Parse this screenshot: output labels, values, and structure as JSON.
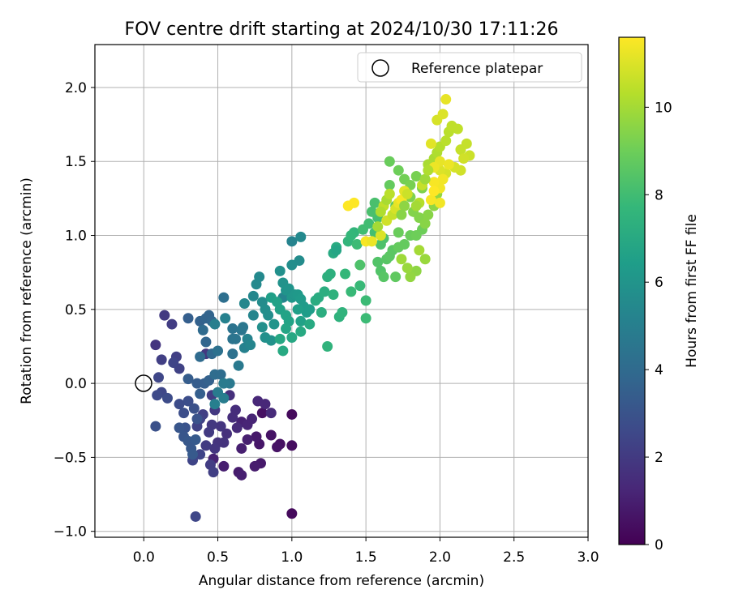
{
  "chart_data": {
    "type": "scatter",
    "title": "FOV centre drift starting at 2024/10/30 17:11:26",
    "xlabel": "Angular distance from reference (arcmin)",
    "ylabel": "Rotation from reference (arcmin)",
    "xlim": [
      -0.33,
      3.0
    ],
    "ylim": [
      -1.04,
      2.29
    ],
    "xticks": [
      0.0,
      0.5,
      1.0,
      1.5,
      2.0,
      2.5,
      3.0
    ],
    "xtick_labels": [
      "0.0",
      "0.5",
      "1.0",
      "1.5",
      "2.0",
      "2.5",
      "3.0"
    ],
    "yticks": [
      -1.0,
      -0.5,
      0.0,
      0.5,
      1.0,
      1.5,
      2.0
    ],
    "ytick_labels": [
      "−1.0",
      "−0.5",
      "0.0",
      "0.5",
      "1.0",
      "1.5",
      "2.0"
    ],
    "grid": true,
    "legend": {
      "position": "top-right",
      "entries": [
        {
          "label": "Reference platepar",
          "marker": "open-circle"
        }
      ]
    },
    "reference_point": {
      "x": 0.0,
      "y": 0.0
    },
    "colorbar": {
      "label": "Hours from first FF file",
      "colormap": "viridis",
      "range": [
        0,
        11.6
      ],
      "ticks": [
        0,
        2,
        4,
        6,
        8,
        10
      ],
      "tick_labels": [
        "0",
        "2",
        "4",
        "6",
        "8",
        "10"
      ]
    },
    "colormap_stops": [
      "#440154",
      "#482878",
      "#3e4989",
      "#31688e",
      "#26828e",
      "#1f9e89",
      "#35b779",
      "#6ece58",
      "#b5de2b",
      "#fde725"
    ],
    "points": [
      [
        1.0,
        -0.88,
        0.3
      ],
      [
        1.0,
        -0.21,
        0.3
      ],
      [
        1.0,
        -0.42,
        0.4
      ],
      [
        0.92,
        -0.41,
        0.5
      ],
      [
        0.9,
        -0.43,
        0.6
      ],
      [
        0.8,
        -0.2,
        0.5
      ],
      [
        0.86,
        -0.35,
        0.6
      ],
      [
        0.78,
        -0.41,
        0.7
      ],
      [
        0.76,
        -0.36,
        0.8
      ],
      [
        0.79,
        -0.54,
        0.8
      ],
      [
        0.75,
        -0.56,
        0.9
      ],
      [
        0.64,
        -0.6,
        0.9
      ],
      [
        0.66,
        -0.62,
        1.0
      ],
      [
        0.54,
        -0.56,
        1.0
      ],
      [
        0.47,
        -0.51,
        1.1
      ],
      [
        0.7,
        -0.38,
        1.0
      ],
      [
        0.66,
        -0.44,
        1.0
      ],
      [
        0.66,
        -0.26,
        1.1
      ],
      [
        0.7,
        -0.28,
        1.2
      ],
      [
        0.73,
        -0.24,
        1.2
      ],
      [
        0.77,
        -0.12,
        1.3
      ],
      [
        0.82,
        -0.14,
        1.3
      ],
      [
        0.86,
        -0.2,
        1.4
      ],
      [
        0.63,
        -0.3,
        1.4
      ],
      [
        0.62,
        -0.18,
        1.5
      ],
      [
        0.6,
        -0.23,
        1.5
      ],
      [
        0.58,
        -0.08,
        1.6
      ],
      [
        0.56,
        -0.34,
        1.6
      ],
      [
        0.54,
        -0.4,
        1.7
      ],
      [
        0.5,
        -0.4,
        1.7
      ],
      [
        0.48,
        -0.44,
        1.8
      ],
      [
        0.52,
        -0.29,
        1.8
      ],
      [
        0.48,
        -0.18,
        1.9
      ],
      [
        0.46,
        -0.28,
        1.9
      ],
      [
        0.44,
        -0.33,
        2.0
      ],
      [
        0.42,
        -0.42,
        2.0
      ],
      [
        0.46,
        -0.08,
        2.1
      ],
      [
        0.45,
        -0.55,
        2.1
      ],
      [
        0.47,
        -0.6,
        2.2
      ],
      [
        0.42,
        0.2,
        1.9
      ],
      [
        0.4,
        -0.21,
        2.2
      ],
      [
        0.38,
        -0.24,
        2.3
      ],
      [
        0.36,
        -0.29,
        2.3
      ],
      [
        0.38,
        -0.48,
        2.4
      ],
      [
        0.33,
        -0.52,
        2.4
      ],
      [
        0.35,
        -0.9,
        2.5
      ],
      [
        0.14,
        0.46,
        2.0
      ],
      [
        0.19,
        0.4,
        2.1
      ],
      [
        0.08,
        0.26,
        1.8
      ],
      [
        0.12,
        0.16,
        2.2
      ],
      [
        0.22,
        0.18,
        2.2
      ],
      [
        0.24,
        0.1,
        2.3
      ],
      [
        0.2,
        0.14,
        2.4
      ],
      [
        0.1,
        0.04,
        2.5
      ],
      [
        0.12,
        -0.06,
        2.5
      ],
      [
        0.09,
        -0.08,
        2.6
      ],
      [
        0.16,
        -0.1,
        2.7
      ],
      [
        0.24,
        -0.14,
        2.7
      ],
      [
        0.27,
        -0.2,
        2.8
      ],
      [
        0.3,
        -0.12,
        2.8
      ],
      [
        0.34,
        -0.17,
        2.9
      ],
      [
        0.36,
        -0.24,
        3.0
      ],
      [
        0.28,
        -0.3,
        3.0
      ],
      [
        0.24,
        -0.3,
        3.1
      ],
      [
        0.27,
        -0.36,
        3.1
      ],
      [
        0.3,
        -0.39,
        3.2
      ],
      [
        0.32,
        -0.44,
        3.2
      ],
      [
        0.35,
        -0.38,
        3.3
      ],
      [
        0.08,
        -0.29,
        2.9
      ],
      [
        0.33,
        -0.48,
        3.3
      ],
      [
        0.3,
        0.03,
        3.4
      ],
      [
        0.36,
        0.0,
        3.4
      ],
      [
        0.38,
        -0.07,
        3.5
      ],
      [
        0.41,
        0.0,
        3.5
      ],
      [
        0.44,
        0.02,
        3.6
      ],
      [
        0.3,
        0.44,
        3.5
      ],
      [
        0.38,
        0.42,
        3.6
      ],
      [
        0.42,
        0.44,
        3.7
      ],
      [
        0.44,
        0.46,
        3.7
      ],
      [
        0.46,
        0.42,
        3.8
      ],
      [
        0.42,
        0.28,
        3.8
      ],
      [
        0.46,
        0.2,
        3.9
      ],
      [
        0.38,
        0.18,
        4.0
      ],
      [
        0.4,
        0.36,
        4.0
      ],
      [
        0.48,
        0.06,
        4.1
      ],
      [
        0.52,
        0.06,
        4.1
      ],
      [
        0.54,
        0.58,
        4.2
      ],
      [
        0.5,
        0.22,
        4.3
      ],
      [
        0.6,
        0.2,
        4.3
      ],
      [
        0.6,
        0.3,
        4.4
      ],
      [
        0.6,
        0.37,
        4.4
      ],
      [
        0.62,
        0.3,
        4.5
      ],
      [
        0.66,
        0.36,
        4.5
      ],
      [
        0.67,
        0.38,
        4.6
      ],
      [
        0.64,
        0.12,
        4.7
      ],
      [
        0.58,
        0.0,
        4.7
      ],
      [
        0.54,
        0.0,
        4.8
      ],
      [
        0.5,
        -0.06,
        4.8
      ],
      [
        0.54,
        -0.1,
        4.9
      ],
      [
        0.48,
        -0.14,
        5.0
      ],
      [
        0.48,
        0.4,
        5.0
      ],
      [
        0.55,
        0.44,
        5.1
      ],
      [
        0.68,
        0.24,
        5.1
      ],
      [
        0.7,
        0.3,
        5.2
      ],
      [
        0.72,
        0.26,
        5.3
      ],
      [
        0.74,
        0.46,
        5.3
      ],
      [
        0.68,
        0.54,
        5.4
      ],
      [
        0.74,
        0.59,
        5.4
      ],
      [
        0.76,
        0.67,
        5.5
      ],
      [
        0.78,
        0.72,
        5.5
      ],
      [
        0.8,
        0.55,
        5.6
      ],
      [
        0.82,
        0.5,
        5.7
      ],
      [
        0.84,
        0.46,
        5.7
      ],
      [
        0.8,
        0.38,
        5.8
      ],
      [
        0.82,
        0.31,
        5.8
      ],
      [
        0.86,
        0.29,
        5.9
      ],
      [
        0.88,
        0.4,
        6.0
      ],
      [
        0.94,
        0.58,
        5.3
      ],
      [
        1.0,
        0.96,
        5.2
      ],
      [
        1.06,
        0.99,
        5.5
      ],
      [
        1.05,
        0.83,
        5.6
      ],
      [
        1.0,
        0.8,
        5.7
      ],
      [
        0.92,
        0.76,
        5.8
      ],
      [
        0.94,
        0.68,
        5.9
      ],
      [
        0.96,
        0.63,
        6.0
      ],
      [
        0.98,
        0.64,
        6.0
      ],
      [
        1.0,
        0.58,
        6.1
      ],
      [
        1.02,
        0.6,
        6.1
      ],
      [
        1.04,
        0.6,
        6.2
      ],
      [
        1.06,
        0.57,
        6.3
      ],
      [
        1.08,
        0.52,
        6.3
      ],
      [
        1.1,
        0.48,
        6.4
      ],
      [
        1.12,
        0.5,
        6.4
      ],
      [
        1.04,
        0.5,
        6.5
      ],
      [
        1.06,
        0.42,
        6.6
      ],
      [
        0.86,
        0.58,
        6.5
      ],
      [
        0.9,
        0.55,
        6.6
      ],
      [
        0.92,
        0.5,
        6.6
      ],
      [
        0.96,
        0.46,
        6.7
      ],
      [
        0.98,
        0.42,
        6.7
      ],
      [
        0.96,
        0.37,
        6.8
      ],
      [
        0.92,
        0.3,
        6.9
      ],
      [
        0.94,
        0.22,
        7.0
      ],
      [
        1.0,
        0.31,
        6.9
      ],
      [
        1.06,
        0.35,
        7.0
      ],
      [
        1.12,
        0.4,
        7.0
      ],
      [
        1.16,
        0.56,
        7.1
      ],
      [
        1.18,
        0.58,
        7.1
      ],
      [
        1.2,
        0.48,
        7.2
      ],
      [
        1.22,
        0.62,
        7.2
      ],
      [
        1.24,
        0.72,
        7.3
      ],
      [
        1.26,
        0.74,
        7.3
      ],
      [
        1.28,
        0.6,
        7.4
      ],
      [
        1.32,
        0.45,
        7.4
      ],
      [
        1.34,
        0.48,
        7.5
      ],
      [
        1.24,
        0.25,
        7.5
      ],
      [
        1.28,
        0.88,
        7.0
      ],
      [
        1.3,
        0.92,
        7.1
      ],
      [
        1.3,
        0.9,
        6.8
      ],
      [
        1.38,
        0.96,
        7.6
      ],
      [
        1.42,
        1.02,
        7.6
      ],
      [
        1.4,
        1.0,
        7.7
      ],
      [
        1.36,
        0.74,
        7.7
      ],
      [
        1.4,
        0.62,
        7.8
      ],
      [
        1.46,
        0.66,
        7.8
      ],
      [
        1.5,
        0.56,
        7.9
      ],
      [
        1.5,
        0.44,
        7.9
      ],
      [
        1.44,
        0.94,
        7.9
      ],
      [
        1.48,
        1.04,
        8.0
      ],
      [
        1.52,
        1.08,
        8.0
      ],
      [
        1.56,
        1.02,
        8.1
      ],
      [
        1.58,
        1.12,
        8.1
      ],
      [
        1.56,
        1.22,
        8.2
      ],
      [
        1.54,
        1.16,
        8.2
      ],
      [
        1.6,
        0.94,
        8.3
      ],
      [
        1.62,
        0.98,
        8.3
      ],
      [
        1.46,
        0.8,
        8.3
      ],
      [
        1.58,
        0.82,
        8.4
      ],
      [
        1.6,
        0.76,
        8.4
      ],
      [
        1.62,
        0.72,
        8.5
      ],
      [
        1.64,
        0.84,
        8.5
      ],
      [
        1.66,
        0.86,
        8.6
      ],
      [
        1.68,
        0.9,
        8.6
      ],
      [
        1.7,
        0.72,
        8.7
      ],
      [
        1.72,
        0.92,
        8.8
      ],
      [
        1.76,
        0.94,
        8.8
      ],
      [
        1.8,
        1.0,
        8.9
      ],
      [
        1.84,
        1.0,
        9.0
      ],
      [
        1.88,
        1.04,
        9.0
      ],
      [
        1.72,
        1.02,
        8.9
      ],
      [
        1.7,
        1.2,
        8.7
      ],
      [
        1.66,
        1.34,
        8.8
      ],
      [
        1.66,
        1.5,
        8.9
      ],
      [
        1.72,
        1.44,
        9.0
      ],
      [
        1.76,
        1.38,
        9.1
      ],
      [
        1.8,
        1.34,
        9.2
      ],
      [
        1.84,
        1.4,
        9.2
      ],
      [
        1.88,
        1.32,
        9.3
      ],
      [
        1.8,
        1.26,
        9.3
      ],
      [
        1.82,
        1.16,
        9.4
      ],
      [
        1.86,
        1.12,
        9.4
      ],
      [
        1.9,
        1.08,
        9.5
      ],
      [
        1.92,
        1.14,
        9.5
      ],
      [
        1.96,
        1.2,
        9.6
      ],
      [
        1.98,
        1.28,
        9.7
      ],
      [
        1.84,
        0.76,
        9.6
      ],
      [
        1.8,
        0.72,
        9.7
      ],
      [
        1.78,
        0.78,
        9.8
      ],
      [
        1.9,
        0.84,
        9.8
      ],
      [
        1.74,
        0.84,
        9.9
      ],
      [
        1.86,
        0.9,
        10.0
      ],
      [
        1.92,
        1.48,
        10.1
      ],
      [
        1.96,
        1.52,
        10.1
      ],
      [
        1.98,
        1.56,
        10.2
      ],
      [
        2.0,
        1.6,
        10.3
      ],
      [
        2.04,
        1.64,
        10.4
      ],
      [
        2.06,
        1.7,
        10.4
      ],
      [
        2.08,
        1.74,
        10.5
      ],
      [
        2.12,
        1.72,
        10.5
      ],
      [
        2.14,
        1.58,
        10.6
      ],
      [
        2.18,
        1.62,
        10.6
      ],
      [
        2.2,
        1.54,
        10.7
      ],
      [
        2.16,
        1.52,
        10.8
      ],
      [
        2.14,
        1.44,
        10.8
      ],
      [
        2.1,
        1.46,
        10.9
      ],
      [
        2.04,
        1.42,
        10.9
      ],
      [
        2.0,
        1.44,
        11.0
      ],
      [
        1.98,
        1.78,
        10.9
      ],
      [
        2.02,
        1.82,
        11.0
      ],
      [
        1.94,
        1.62,
        11.1
      ],
      [
        2.04,
        1.92,
        11.2
      ],
      [
        2.0,
        1.5,
        11.2
      ],
      [
        1.96,
        1.46,
        11.3
      ],
      [
        2.06,
        1.48,
        11.3
      ],
      [
        2.02,
        1.38,
        11.4
      ],
      [
        2.0,
        1.32,
        11.4
      ],
      [
        1.96,
        1.36,
        11.5
      ],
      [
        1.94,
        1.24,
        11.5
      ],
      [
        1.96,
        1.3,
        11.6
      ],
      [
        2.0,
        1.22,
        11.4
      ],
      [
        1.38,
        1.2,
        11.6
      ],
      [
        1.42,
        1.22,
        11.6
      ],
      [
        1.5,
        0.96,
        11.5
      ],
      [
        1.54,
        0.96,
        11.3
      ],
      [
        1.6,
        1.0,
        11.0
      ],
      [
        1.64,
        1.1,
        10.8
      ],
      [
        1.68,
        1.14,
        10.6
      ],
      [
        1.7,
        1.18,
        10.9
      ],
      [
        1.72,
        1.22,
        11.2
      ],
      [
        1.74,
        1.24,
        11.5
      ],
      [
        1.76,
        1.3,
        11.1
      ],
      [
        1.78,
        1.28,
        10.7
      ],
      [
        1.62,
        1.2,
        10.5
      ],
      [
        1.6,
        1.16,
        10.2
      ],
      [
        1.58,
        1.06,
        10.0
      ],
      [
        1.64,
        1.24,
        10.1
      ],
      [
        1.66,
        1.28,
        10.4
      ],
      [
        1.86,
        1.22,
        10.3
      ],
      [
        1.88,
        1.34,
        10.6
      ],
      [
        1.84,
        1.2,
        10.0
      ],
      [
        1.9,
        1.38,
        9.9
      ],
      [
        1.92,
        1.44,
        10.2
      ],
      [
        1.76,
        1.2,
        9.6
      ],
      [
        1.74,
        1.14,
        9.5
      ]
    ]
  }
}
